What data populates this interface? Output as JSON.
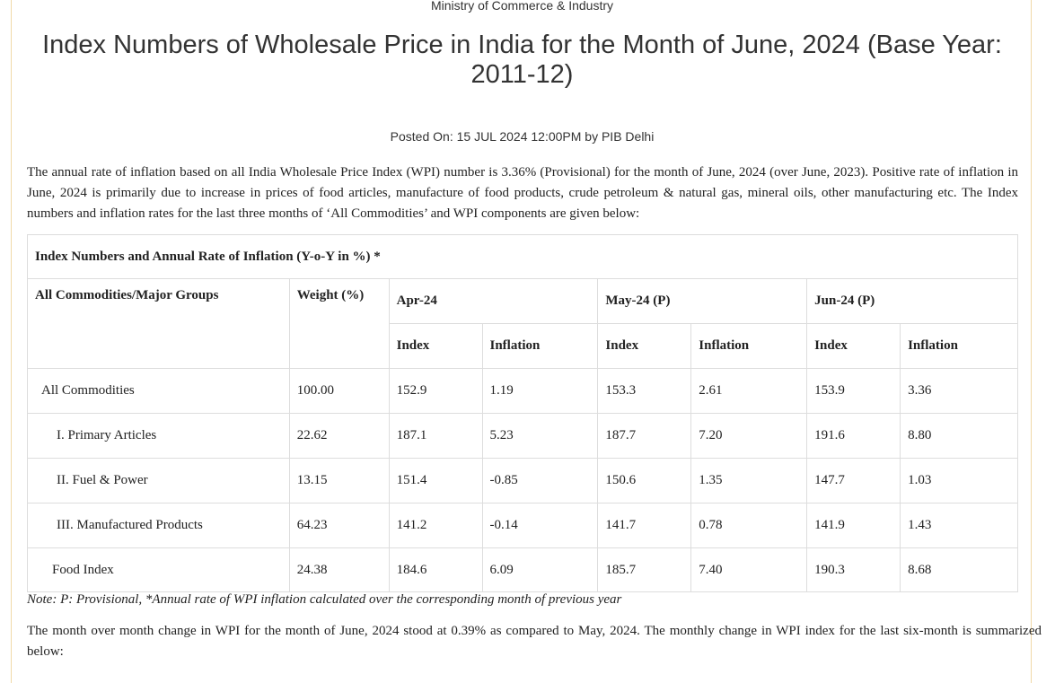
{
  "header": {
    "ministry": "Ministry of Commerce & Industry",
    "title": "Index Numbers of Wholesale Price in India for the Month of June, 2024 (Base Year: 2011-12)",
    "posted": "Posted On: 15 JUL 2024 12:00PM by PIB Delhi"
  },
  "intro": "The annual rate of inflation based on all India Wholesale Price Index (WPI) number is 3.36% (Provisional) for the month of June, 2024 (over June, 2023). Positive rate of inflation in June, 2024 is primarily due to increase in prices of food articles, manufacture of food products, crude petroleum & natural gas, mineral oils, other manufacturing etc. The Index numbers and inflation rates for the last three months of ‘All Commodities’ and WPI components are given below:",
  "table": {
    "caption": "Index Numbers and Annual Rate of Inflation (Y-o-Y in %) *",
    "col_group": "All Commodities/Major Groups",
    "col_weight": "Weight (%)",
    "months": [
      "Apr-24",
      "May-24 (P)",
      "Jun-24 (P)"
    ],
    "sub_index": "Index",
    "sub_inflation": "Inflation",
    "rows": [
      {
        "name": "All Commodities",
        "weight": "100.00",
        "v": [
          "152.9",
          "1.19",
          "153.3",
          "2.61",
          "153.9",
          "3.36"
        ]
      },
      {
        "name": "I. Primary Articles",
        "weight": "22.62",
        "v": [
          "187.1",
          "5.23",
          "187.7",
          "7.20",
          "191.6",
          "8.80"
        ]
      },
      {
        "name": "II. Fuel & Power",
        "weight": "13.15",
        "v": [
          "151.4",
          "-0.85",
          "150.6",
          "1.35",
          "147.7",
          "1.03"
        ]
      },
      {
        "name": "III. Manufactured Products",
        "weight": "64.23",
        "v": [
          "141.2",
          "-0.14",
          "141.7",
          "0.78",
          "141.9",
          "1.43"
        ]
      },
      {
        "name": "Food Index",
        "weight": "24.38",
        "v": [
          "184.6",
          "6.09",
          "185.7",
          "7.40",
          "190.3",
          "8.68"
        ]
      }
    ]
  },
  "note": "Note: P: Provisional, *Annual rate of WPI inflation calculated over the corresponding month of previous year",
  "para2": "The month over month change in WPI for the month of June, 2024 stood at 0.39% as compared to May, 2024. The monthly change in WPI index for the last six-month is summarized below:"
}
